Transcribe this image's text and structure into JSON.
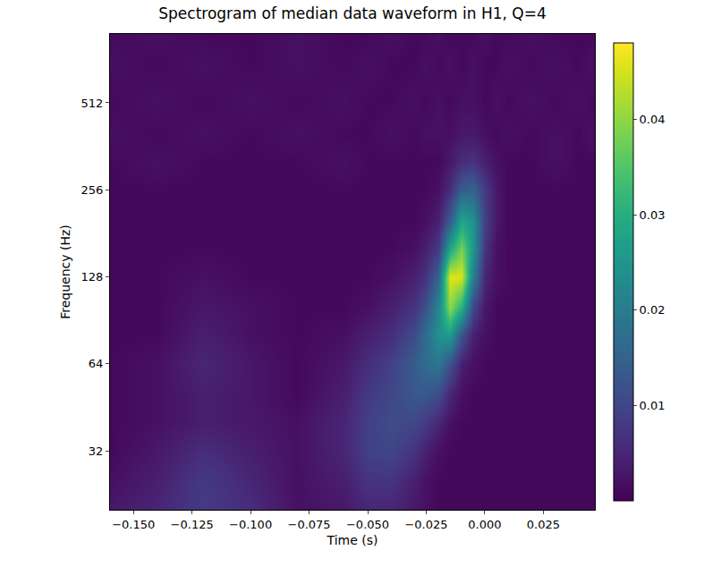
{
  "chart_data": {
    "type": "heatmap",
    "title": "Spectrogram of median data waveform in H1, Q=4",
    "x_label": "Time (s)",
    "y_label": "Frequency (Hz)",
    "log": "y",
    "grid": false,
    "color": "Viridis",
    "xlim": [
      -0.16,
      0.047
    ],
    "xticks": [
      {
        "value": -0.15,
        "label": "−0.150"
      },
      {
        "value": -0.125,
        "label": "−0.125"
      },
      {
        "value": -0.1,
        "label": "−0.100"
      },
      {
        "value": -0.075,
        "label": "−0.075"
      },
      {
        "value": -0.05,
        "label": "−0.050"
      },
      {
        "value": -0.025,
        "label": "−0.025"
      },
      {
        "value": 0,
        "label": "0.000"
      },
      {
        "value": 0.025,
        "label": "0.025"
      }
    ],
    "ylim": [
      20,
      886
    ],
    "yticks": [
      32,
      64,
      128,
      256,
      512
    ],
    "x": [
      -0.16,
      -0.14,
      -0.12,
      -0.1,
      -0.08,
      -0.06,
      -0.05,
      -0.04,
      -0.03,
      -0.025,
      -0.02,
      -0.015,
      -0.01,
      -0.005,
      0,
      0.005,
      0.01,
      0.02,
      0.03,
      0.04,
      0.045
    ],
    "y": [
      20,
      25,
      32,
      40,
      50,
      64,
      80,
      100,
      128,
      160,
      200,
      256,
      320,
      400,
      512,
      700,
      886
    ],
    "cells": [
      [
        0.003,
        0.005,
        0.008,
        0.006,
        0.002,
        0.003,
        0.005,
        0.005,
        0.003,
        0.002,
        0.001,
        0.001,
        0.001,
        0.001,
        0.001,
        0.001,
        0.001,
        0.001,
        0.001,
        0.001,
        0.001
      ],
      [
        0.002,
        0.004,
        0.008,
        0.005,
        0.002,
        0.004,
        0.007,
        0.007,
        0.004,
        0.002,
        0.001,
        0.001,
        0.001,
        0.001,
        0.001,
        0.001,
        0.001,
        0.001,
        0.001,
        0.001,
        0.001
      ],
      [
        0.001,
        0.003,
        0.006,
        0.004,
        0.002,
        0.005,
        0.009,
        0.01,
        0.007,
        0.004,
        0.002,
        0.001,
        0.001,
        0.001,
        0.001,
        0.001,
        0.001,
        0.001,
        0.001,
        0.001,
        0.001
      ],
      [
        0.001,
        0.002,
        0.004,
        0.003,
        0.002,
        0.005,
        0.009,
        0.011,
        0.01,
        0.008,
        0.005,
        0.002,
        0.001,
        0.001,
        0.001,
        0.001,
        0.001,
        0.001,
        0.001,
        0.001,
        0.001
      ],
      [
        0.001,
        0.002,
        0.004,
        0.003,
        0.001,
        0.004,
        0.008,
        0.01,
        0.013,
        0.013,
        0.011,
        0.005,
        0.002,
        0.001,
        0.001,
        0.001,
        0.001,
        0.001,
        0.001,
        0.001,
        0.001
      ],
      [
        0.001,
        0.002,
        0.005,
        0.003,
        0.001,
        0.003,
        0.006,
        0.009,
        0.014,
        0.017,
        0.019,
        0.012,
        0.004,
        0.002,
        0.001,
        0.001,
        0.001,
        0.001,
        0.001,
        0.001,
        0.001
      ],
      [
        0.001,
        0.001,
        0.004,
        0.002,
        0.001,
        0.002,
        0.004,
        0.006,
        0.011,
        0.017,
        0.024,
        0.026,
        0.012,
        0.004,
        0.002,
        0.001,
        0.001,
        0.001,
        0.001,
        0.001,
        0.001
      ],
      [
        0.001,
        0.001,
        0.003,
        0.002,
        0.001,
        0.001,
        0.002,
        0.004,
        0.007,
        0.012,
        0.022,
        0.04,
        0.03,
        0.01,
        0.003,
        0.001,
        0.001,
        0.001,
        0.001,
        0.001,
        0.001
      ],
      [
        0.001,
        0.001,
        0.002,
        0.001,
        0.001,
        0.001,
        0.001,
        0.002,
        0.004,
        0.007,
        0.015,
        0.046,
        0.045,
        0.02,
        0.005,
        0.002,
        0.001,
        0.001,
        0.001,
        0.001,
        0.001
      ],
      [
        0.001,
        0.001,
        0.001,
        0.001,
        0.001,
        0.001,
        0.001,
        0.001,
        0.002,
        0.004,
        0.008,
        0.028,
        0.038,
        0.025,
        0.007,
        0.002,
        0.001,
        0.001,
        0.001,
        0.001,
        0.001
      ],
      [
        0.001,
        0.001,
        0.001,
        0.001,
        0.001,
        0.001,
        0.001,
        0.001,
        0.001,
        0.002,
        0.004,
        0.014,
        0.028,
        0.024,
        0.009,
        0.003,
        0.001,
        0.001,
        0.001,
        0.001,
        0.001
      ],
      [
        0.001,
        0.001,
        0.001,
        0.001,
        0.001,
        0.001,
        0.001,
        0.001,
        0.001,
        0.001,
        0.002,
        0.006,
        0.014,
        0.015,
        0.008,
        0.003,
        0.001,
        0.001,
        0.001,
        0.001,
        0.001
      ],
      [
        0.001,
        0.002,
        0.001,
        0.001,
        0.001,
        0.002,
        0.001,
        0.001,
        0.001,
        0.001,
        0.001,
        0.003,
        0.006,
        0.007,
        0.004,
        0.002,
        0.001,
        0.001,
        0.002,
        0.001,
        0.001
      ],
      [
        0.002,
        0.001,
        0.002,
        0.001,
        0.002,
        0.001,
        0.001,
        0.002,
        0.001,
        0.002,
        0.002,
        0.002,
        0.003,
        0.003,
        0.002,
        0.001,
        0.002,
        0.001,
        0.002,
        0.001,
        0.002
      ],
      [
        0.001,
        0.002,
        0.001,
        0.002,
        0.001,
        0.002,
        0.001,
        0.001,
        0.002,
        0.001,
        0.002,
        0.001,
        0.002,
        0.002,
        0.001,
        0.002,
        0.001,
        0.002,
        0.001,
        0.002,
        0.001
      ],
      [
        0.002,
        0.001,
        0.002,
        0.001,
        0.002,
        0.001,
        0.002,
        0.001,
        0.001,
        0.002,
        0.001,
        0.002,
        0.001,
        0.002,
        0.001,
        0.001,
        0.002,
        0.001,
        0.002,
        0.001,
        0.002
      ],
      [
        0.001,
        0.002,
        0.001,
        0.001,
        0.002,
        0.001,
        0.001,
        0.002,
        0.001,
        0.001,
        0.002,
        0.001,
        0.001,
        0.001,
        0.002,
        0.001,
        0.001,
        0.002,
        0.001,
        0.001,
        0.001
      ]
    ],
    "colorbar_range": [
      0,
      0.048
    ],
    "colorbar_ticks": [
      0.01,
      0.02,
      0.03,
      0.04
    ]
  }
}
